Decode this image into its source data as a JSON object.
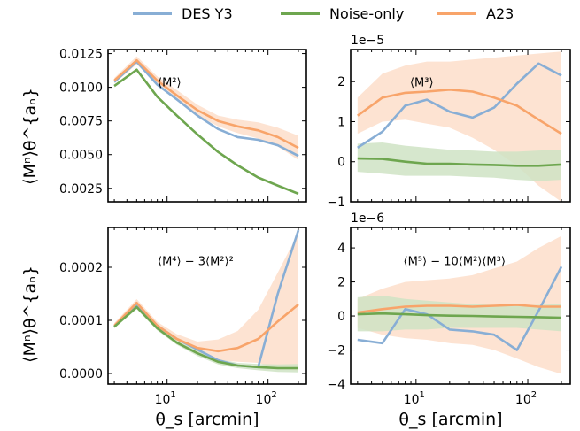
{
  "colors": {
    "des": "#88aed5",
    "noise": "#6ea64f",
    "a23": "#f8a46a",
    "band": "#fcd9c3",
    "noise_band": "#cfe3c4"
  },
  "legend": [
    {
      "label": "DES Y3",
      "color": "#88aed5"
    },
    {
      "label": "Noise-only",
      "color": "#6ea64f"
    },
    {
      "label": "A23",
      "color": "#f8a46a"
    }
  ],
  "figure": {
    "xlabel": "θ_s [arcmin]",
    "ylabel": "⟨Mⁿ⟩θ^{aₙ}"
  },
  "chart_data": [
    {
      "type": "line",
      "panel_label": "⟨M²⟩",
      "x": [
        3,
        5,
        8,
        12.5,
        20,
        32,
        50,
        80,
        125,
        200
      ],
      "xscale": "log",
      "xlim": [
        2.6,
        240
      ],
      "ylim": [
        0.0015,
        0.0128
      ],
      "yticks": [
        0.0025,
        0.005,
        0.0075,
        0.01,
        0.0125
      ],
      "ytick_labels": [
        "0.0025",
        "0.0050",
        "0.0075",
        "0.0100",
        "0.0125"
      ],
      "offset_text": "",
      "series": [
        {
          "name": "DES Y3",
          "values": [
            0.0104,
            0.0119,
            0.0102,
            0.0091,
            0.0079,
            0.0069,
            0.0063,
            0.0061,
            0.0057,
            0.0049
          ]
        },
        {
          "name": "Noise-only",
          "values": [
            0.0101,
            0.0113,
            0.0093,
            0.0079,
            0.0065,
            0.0052,
            0.0042,
            0.0033,
            0.0027,
            0.0021
          ],
          "band_lower": [
            0.01,
            0.0112,
            0.0092,
            0.0078,
            0.0064,
            0.0051,
            0.0041,
            0.0032,
            0.0026,
            0.002
          ],
          "band_upper": [
            0.0102,
            0.0114,
            0.0094,
            0.008,
            0.0066,
            0.0053,
            0.0043,
            0.0034,
            0.0028,
            0.0022
          ]
        },
        {
          "name": "A23",
          "values": [
            0.0105,
            0.012,
            0.0105,
            0.0094,
            0.0083,
            0.0075,
            0.0071,
            0.0068,
            0.0063,
            0.0055
          ],
          "band_lower": [
            0.0103,
            0.0117,
            0.0102,
            0.009,
            0.0079,
            0.0071,
            0.0066,
            0.0062,
            0.0056,
            0.0046
          ],
          "band_upper": [
            0.0107,
            0.0123,
            0.0108,
            0.0098,
            0.0087,
            0.0079,
            0.0076,
            0.0074,
            0.007,
            0.0064
          ]
        }
      ]
    },
    {
      "type": "line",
      "panel_label": "⟨M³⟩",
      "x": [
        3,
        5,
        8,
        12.5,
        20,
        32,
        50,
        80,
        125,
        200
      ],
      "xscale": "log",
      "xlim": [
        2.6,
        240
      ],
      "ylim": [
        -1.0,
        2.8
      ],
      "yticks": [
        -1,
        0,
        1,
        2
      ],
      "ytick_labels": [
        "−1",
        "0",
        "1",
        "2"
      ],
      "offset_text": "1e−5",
      "series": [
        {
          "name": "DES Y3",
          "values": [
            0.35,
            0.75,
            1.4,
            1.55,
            1.25,
            1.1,
            1.35,
            1.95,
            2.45,
            2.15
          ]
        },
        {
          "name": "Noise-only",
          "values": [
            0.08,
            0.07,
            0.0,
            -0.05,
            -0.05,
            -0.07,
            -0.08,
            -0.1,
            -0.1,
            -0.07
          ],
          "band_lower": [
            -0.25,
            -0.3,
            -0.35,
            -0.35,
            -0.35,
            -0.38,
            -0.4,
            -0.45,
            -0.48,
            -0.45
          ],
          "band_upper": [
            0.45,
            0.48,
            0.4,
            0.35,
            0.3,
            0.28,
            0.25,
            0.25,
            0.28,
            0.3
          ]
        },
        {
          "name": "A23",
          "values": [
            1.15,
            1.6,
            1.72,
            1.75,
            1.8,
            1.75,
            1.6,
            1.4,
            1.05,
            0.7
          ],
          "band_lower": [
            0.7,
            1.0,
            1.05,
            0.95,
            0.85,
            0.6,
            0.3,
            -0.1,
            -0.6,
            -1.0
          ],
          "band_upper": [
            1.6,
            2.2,
            2.4,
            2.5,
            2.5,
            2.55,
            2.6,
            2.65,
            2.7,
            2.75
          ]
        }
      ]
    },
    {
      "type": "line",
      "panel_label": "⟨M⁴⟩ − 3⟨M²⟩²",
      "x": [
        3,
        5,
        8,
        12.5,
        20,
        32,
        50,
        80,
        125,
        200
      ],
      "xscale": "log",
      "xlim": [
        2.6,
        240
      ],
      "ylim": [
        -2e-05,
        0.000275
      ],
      "yticks": [
        0,
        0.0001,
        0.0002
      ],
      "ytick_labels": [
        "0.0000",
        "0.0001",
        "0.0002"
      ],
      "offset_text": "",
      "series": [
        {
          "name": "DES Y3",
          "values": [
            8.8e-05,
            0.00013,
            9e-05,
            6.5e-05,
            4.5e-05,
            2.5e-05,
            1.5e-05,
            1.2e-05,
            0.00015,
            0.00027
          ]
        },
        {
          "name": "Noise-only",
          "values": [
            8.8e-05,
            0.000125,
            8.5e-05,
            5.8e-05,
            3.8e-05,
            2.2e-05,
            1.5e-05,
            1.2e-05,
            1e-05,
            1e-05
          ],
          "band_lower": [
            8.5e-05,
            0.000121,
            8.1e-05,
            5.4e-05,
            3.3e-05,
            1.7e-05,
            1e-05,
            6e-06,
            3e-06,
            2e-06
          ],
          "band_upper": [
            9.1e-05,
            0.000129,
            8.9e-05,
            6.2e-05,
            4.3e-05,
            2.7e-05,
            2e-05,
            1.8e-05,
            1.7e-05,
            1.8e-05
          ]
        },
        {
          "name": "A23",
          "values": [
            9e-05,
            0.000133,
            9e-05,
            6.5e-05,
            4.8e-05,
            4.2e-05,
            4.8e-05,
            6.5e-05,
            9.8e-05,
            0.00013
          ],
          "band_lower": [
            8.5e-05,
            0.000126,
            8.3e-05,
            5.6e-05,
            3.6e-05,
            2.5e-05,
            2.2e-05,
            2e-05,
            1e-05,
            5e-06
          ],
          "band_upper": [
            9.5e-05,
            0.00014,
            9.7e-05,
            7.4e-05,
            6e-05,
            6.4e-05,
            8e-05,
            0.00012,
            0.00019,
            0.000265
          ]
        }
      ]
    },
    {
      "type": "line",
      "panel_label": "⟨M⁵⟩ − 10⟨M²⟩⟨M³⟩",
      "x": [
        3,
        5,
        8,
        12.5,
        20,
        32,
        50,
        80,
        125,
        200
      ],
      "xscale": "log",
      "xlim": [
        2.6,
        240
      ],
      "ylim": [
        -4.0,
        5.2
      ],
      "yticks": [
        -4,
        -2,
        0,
        2,
        4
      ],
      "ytick_labels": [
        "−4",
        "−2",
        "0",
        "2",
        "4"
      ],
      "offset_text": "1e−6",
      "series": [
        {
          "name": "DES Y3",
          "values": [
            -1.4,
            -1.6,
            0.4,
            0.1,
            -0.8,
            -0.9,
            -1.1,
            -2.0,
            0.3,
            2.9
          ]
        },
        {
          "name": "Noise-only",
          "values": [
            0.1,
            0.15,
            0.1,
            0.05,
            0.02,
            0.0,
            -0.03,
            -0.05,
            -0.07,
            -0.1
          ],
          "band_lower": [
            -0.9,
            -0.9,
            -0.8,
            -0.8,
            -0.7,
            -0.7,
            -0.7,
            -0.7,
            -0.8,
            -0.9
          ],
          "band_upper": [
            1.1,
            1.2,
            1.0,
            0.9,
            0.8,
            0.7,
            0.65,
            0.6,
            0.65,
            0.7
          ]
        },
        {
          "name": "A23",
          "values": [
            0.2,
            0.4,
            0.55,
            0.6,
            0.6,
            0.55,
            0.6,
            0.65,
            0.55,
            0.55
          ],
          "band_lower": [
            -0.7,
            -1.1,
            -1.3,
            -1.4,
            -1.6,
            -1.7,
            -2.0,
            -2.5,
            -3.0,
            -3.4
          ],
          "band_upper": [
            1.0,
            1.6,
            2.0,
            2.1,
            2.2,
            2.4,
            2.8,
            3.2,
            4.0,
            4.7
          ]
        }
      ]
    }
  ]
}
